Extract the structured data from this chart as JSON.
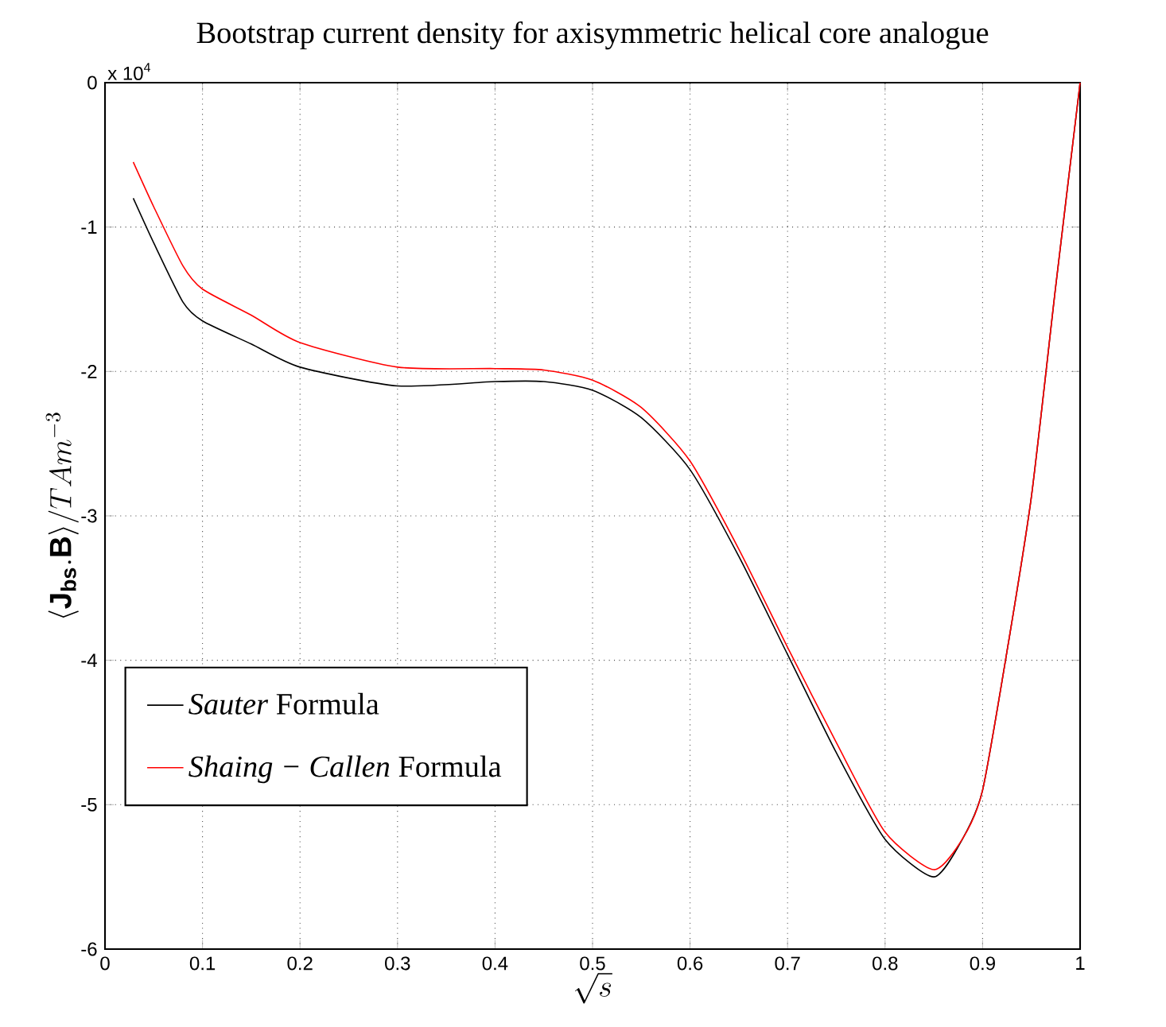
{
  "chart_data": {
    "type": "line",
    "title": "Bootstrap current density for axisymmetric helical core analogue",
    "xlabel": "\\sqrt{s}",
    "ylabel": "\\langle \\mathbf{J}_{\\mathbf{bs}}.\\mathbf{B}\\rangle / TAm^{-3}",
    "annotations": [
      "x 10$^{4}$"
    ],
    "x": [
      0.029,
      0.05,
      0.08,
      0.1,
      0.15,
      0.2,
      0.3,
      0.4,
      0.45,
      0.5,
      0.55,
      0.6,
      0.65,
      0.7,
      0.75,
      0.8,
      0.85,
      0.88,
      0.9,
      0.925,
      0.95,
      0.975,
      1.0
    ],
    "series": [
      {
        "name": "*Sauter* Formula",
        "color": "#000000",
        "values": [
          -0.8,
          -1.11,
          -1.52,
          -1.65,
          -1.81,
          -1.97,
          -2.1,
          -2.07,
          -2.07,
          -2.13,
          -2.32,
          -2.68,
          -3.28,
          -3.96,
          -4.64,
          -5.24,
          -5.5,
          -5.23,
          -4.9,
          -3.94,
          -2.87,
          -1.41,
          0
        ]
      },
      {
        "name": "*Shaing − Callen* Formula",
        "color": "#ff0000",
        "x": [
          0.029,
          0.05,
          0.08,
          0.1,
          0.15,
          0.2,
          0.3,
          0.4,
          0.45,
          0.5,
          0.55,
          0.6,
          0.65,
          0.7,
          0.75,
          0.8,
          0.85,
          0.88,
          0.9,
          0.925,
          0.95,
          0.975,
          1.0
        ],
        "values": [
          -0.55,
          -0.86,
          -1.27,
          -1.43,
          -1.61,
          -1.8,
          -1.97,
          -1.98,
          -1.99,
          -2.06,
          -2.25,
          -2.62,
          -3.23,
          -3.91,
          -4.57,
          -5.19,
          -5.45,
          -5.23,
          -4.9,
          -3.94,
          -2.87,
          -1.41,
          0
        ]
      }
    ],
    "xlim": [
      0,
      1
    ],
    "ylim": [
      -6,
      0
    ],
    "xticks": [
      0,
      0.1,
      0.2,
      0.3,
      0.4,
      0.5,
      0.6,
      0.7,
      0.8,
      0.9,
      1
    ],
    "yticks": [
      -6,
      -5,
      -4,
      -3,
      -2,
      -1,
      0
    ],
    "grid": true,
    "legend": "left",
    "line_style": "solid"
  }
}
